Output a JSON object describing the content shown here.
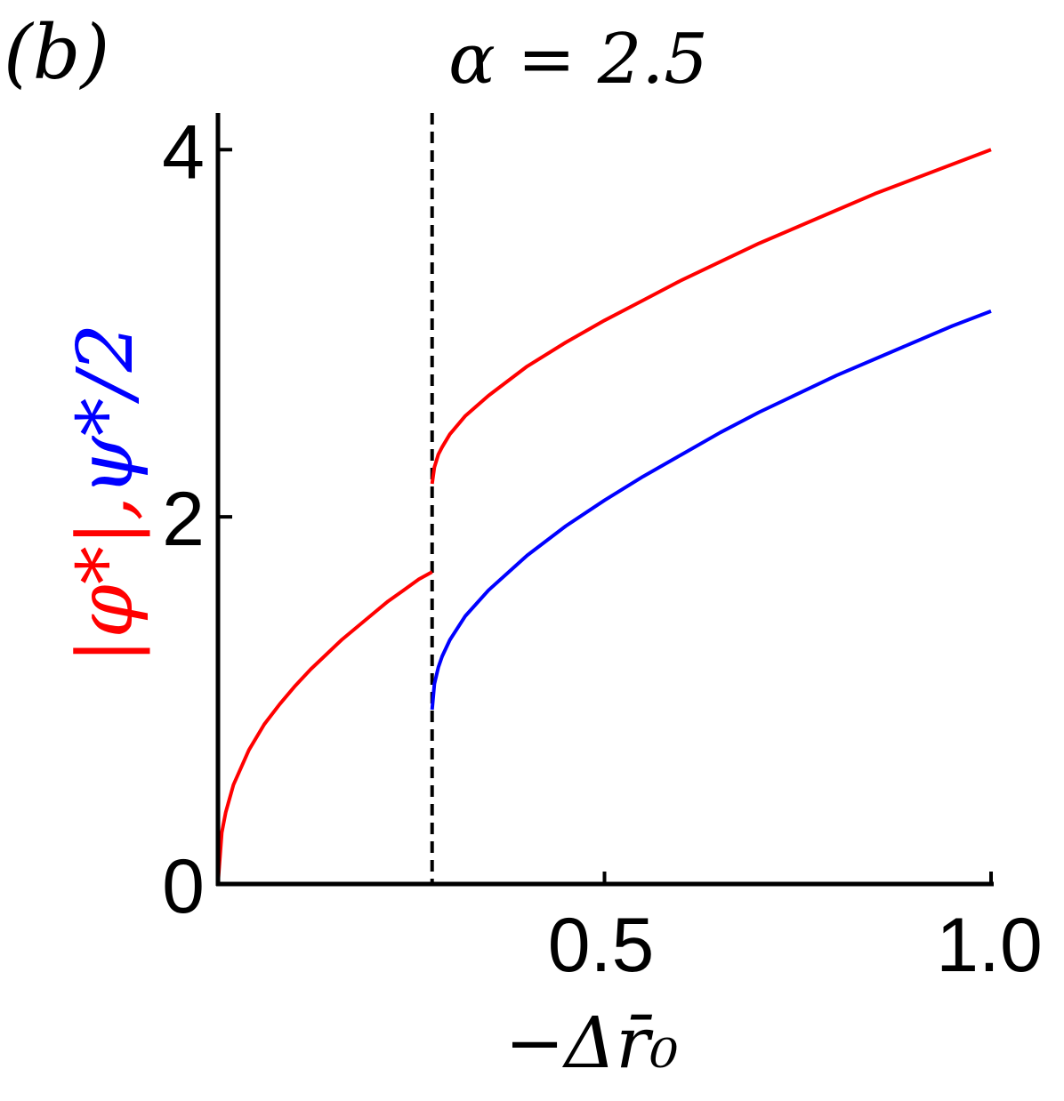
{
  "panel_label": "(b)",
  "chart_data": {
    "type": "line",
    "title": "α = 2.5",
    "xlabel": "−Δr̄₀",
    "ylabel": {
      "red_part": "|φ*|",
      "separator": ",",
      "blue_part": "ψ*/2"
    },
    "xlim": [
      0,
      1.0
    ],
    "ylim": [
      0,
      4.2
    ],
    "x_ticks": [
      0.5,
      1.0
    ],
    "x_tick_labels": [
      "0.5",
      "1.0"
    ],
    "y_ticks": [
      0,
      2,
      4
    ],
    "y_tick_labels": [
      "0",
      "2",
      "4"
    ],
    "grid": false,
    "legend": "none",
    "vline": {
      "x": 0.277,
      "style": "dashed",
      "color": "#000000"
    },
    "series": [
      {
        "color": "#ff0000",
        "x": [
          0,
          0.005,
          0.01,
          0.02,
          0.04,
          0.06,
          0.08,
          0.1,
          0.12,
          0.14,
          0.16,
          0.18,
          0.2,
          0.22,
          0.24,
          0.26,
          0.277
        ],
        "y": [
          0,
          0.28,
          0.39,
          0.54,
          0.73,
          0.87,
          0.98,
          1.08,
          1.17,
          1.25,
          1.33,
          1.4,
          1.47,
          1.54,
          1.6,
          1.66,
          1.7
        ]
      },
      {
        "color": "#ff0000",
        "x": [
          0.277,
          0.28,
          0.285,
          0.29,
          0.3,
          0.32,
          0.35,
          0.4,
          0.45,
          0.5,
          0.55,
          0.6,
          0.65,
          0.7,
          0.75,
          0.8,
          0.85,
          0.9,
          0.95,
          1.0
        ],
        "y": [
          2.18,
          2.27,
          2.34,
          2.38,
          2.45,
          2.55,
          2.66,
          2.82,
          2.95,
          3.07,
          3.18,
          3.29,
          3.39,
          3.49,
          3.58,
          3.67,
          3.76,
          3.84,
          3.92,
          4.0
        ]
      },
      {
        "color": "#0000ff",
        "x": [
          0.277,
          0.28,
          0.285,
          0.29,
          0.3,
          0.32,
          0.35,
          0.4,
          0.45,
          0.5,
          0.55,
          0.6,
          0.65,
          0.7,
          0.75,
          0.8,
          0.85,
          0.9,
          0.95,
          1.0
        ],
        "y": [
          0.95,
          1.09,
          1.18,
          1.24,
          1.33,
          1.46,
          1.6,
          1.79,
          1.95,
          2.09,
          2.22,
          2.34,
          2.46,
          2.57,
          2.67,
          2.77,
          2.86,
          2.95,
          3.04,
          3.12
        ]
      }
    ]
  }
}
